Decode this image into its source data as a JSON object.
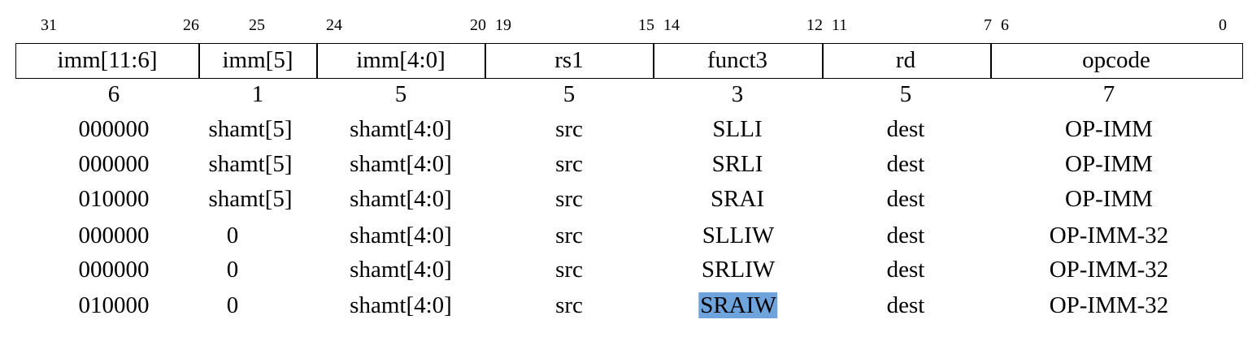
{
  "bit_labels": [
    "31",
    "26",
    "25",
    "24",
    "20",
    "19",
    "15",
    "14",
    "12",
    "11",
    "7",
    "6",
    "0"
  ],
  "fields": [
    "imm[11:6]",
    "imm[5]",
    "imm[4:0]",
    "rs1",
    "funct3",
    "rd",
    "opcode"
  ],
  "widths": [
    "6",
    "1",
    "5",
    "5",
    "3",
    "5",
    "7"
  ],
  "rows": [
    [
      "000000",
      "shamt[5]",
      "shamt[4:0]",
      "src",
      "SLLI",
      "dest",
      "OP-IMM"
    ],
    [
      "000000",
      "shamt[5]",
      "shamt[4:0]",
      "src",
      "SRLI",
      "dest",
      "OP-IMM"
    ],
    [
      "010000",
      "shamt[5]",
      "shamt[4:0]",
      "src",
      "SRAI",
      "dest",
      "OP-IMM"
    ],
    [
      "000000",
      "0",
      "shamt[4:0]",
      "src",
      "SLLIW",
      "dest",
      "OP-IMM-32"
    ],
    [
      "000000",
      "0",
      "shamt[4:0]",
      "src",
      "SRLIW",
      "dest",
      "OP-IMM-32"
    ],
    [
      "010000",
      "0",
      "shamt[4:0]",
      "src",
      "SRAIW",
      "dest",
      "OP-IMM-32"
    ]
  ],
  "highlight_color": "#6fa3dc"
}
